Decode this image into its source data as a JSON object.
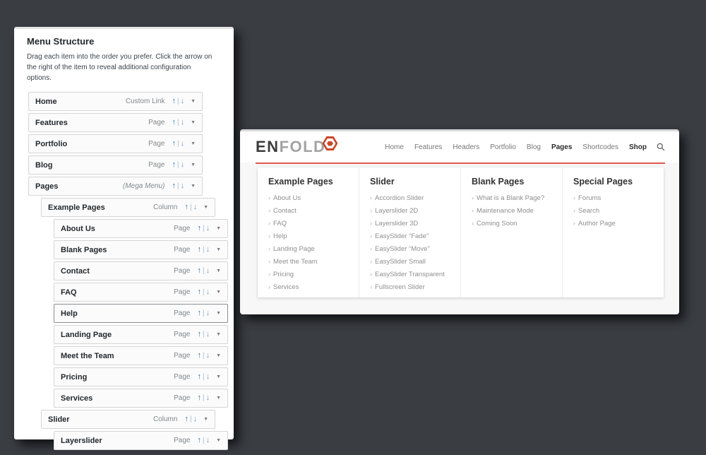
{
  "colors": {
    "background": "#3a3d42",
    "accent_red": "#e2574c",
    "logo_red": "#c9472b",
    "wp_arrow_up_blue": "#2271b1",
    "wp_arrow_down_blue": "#5b9dd9"
  },
  "wp_panel": {
    "title": "Menu Structure",
    "description": "Drag each item into the order you prefer. Click the arrow on the right of the item to reveal additional configuration options.",
    "controls": {
      "move_up": "↑",
      "separator": "|",
      "move_down": "↓",
      "expand": "▼"
    },
    "items": [
      {
        "label": "Home",
        "meta": "Custom Link",
        "level": 0
      },
      {
        "label": "Features",
        "meta": "Page",
        "level": 0
      },
      {
        "label": "Portfolio",
        "meta": "Page",
        "level": 0
      },
      {
        "label": "Blog",
        "meta": "Page",
        "level": 0
      },
      {
        "label": "Pages",
        "meta": "(Mega Menu)",
        "level": 0,
        "meta_italic": true
      },
      {
        "label": "Example Pages",
        "meta": "Column",
        "level": 1
      },
      {
        "label": "About Us",
        "meta": "Page",
        "level": 2
      },
      {
        "label": "Blank Pages",
        "meta": "Page",
        "level": 2
      },
      {
        "label": "Contact",
        "meta": "Page",
        "level": 2
      },
      {
        "label": "FAQ",
        "meta": "Page",
        "level": 2
      },
      {
        "label": "Help",
        "meta": "Page",
        "level": 2,
        "selected": true
      },
      {
        "label": "Landing Page",
        "meta": "Page",
        "level": 2
      },
      {
        "label": "Meet the Team",
        "meta": "Page",
        "level": 2
      },
      {
        "label": "Pricing",
        "meta": "Page",
        "level": 2
      },
      {
        "label": "Services",
        "meta": "Page",
        "level": 2
      },
      {
        "label": "Slider",
        "meta": "Column",
        "level": 1
      },
      {
        "label": "Layerslider",
        "meta": "Page",
        "level": 2
      }
    ]
  },
  "site": {
    "logo": {
      "text_bold": "EN",
      "text_light": "FOLD"
    },
    "nav": [
      {
        "label": "Home",
        "active": false
      },
      {
        "label": "Features",
        "active": false
      },
      {
        "label": "Headers",
        "active": false
      },
      {
        "label": "Portfolio",
        "active": false
      },
      {
        "label": "Blog",
        "active": false
      },
      {
        "label": "Pages",
        "active": true
      },
      {
        "label": "Shortcodes",
        "active": false
      },
      {
        "label": "Shop",
        "active": true
      }
    ],
    "mega_menu": {
      "bullet": "›",
      "columns": [
        {
          "heading": "Example Pages",
          "items": [
            "About Us",
            "Contact",
            "FAQ",
            "Help",
            "Landing Page",
            "Meet the Team",
            "Pricing",
            "Services"
          ]
        },
        {
          "heading": "Slider",
          "items": [
            "Accordion Slider",
            "Layerslider 2D",
            "Layerslider 3D",
            "EasySlider “Fade”",
            "EasySlider “Move”",
            "EasySlider Small",
            "EasySlider Transparent",
            "Fullscreen Slider"
          ]
        },
        {
          "heading": "Blank Pages",
          "items": [
            "What is a Blank Page?",
            "Maintenance Mode",
            "Coming Soon"
          ]
        },
        {
          "heading": "Special Pages",
          "items": [
            "Forums",
            "Search",
            "Author Page"
          ]
        }
      ]
    }
  }
}
